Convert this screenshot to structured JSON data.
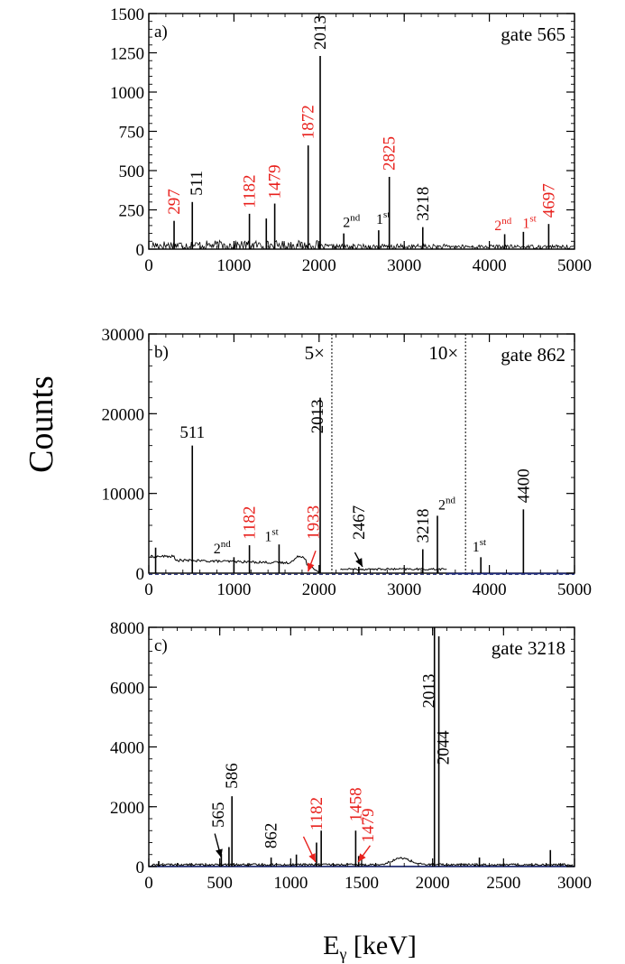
{
  "figure": {
    "ylabel": "Counts",
    "xlabel": "E",
    "xlabel_sub": "γ",
    "xlabel_unit": " [keV]"
  },
  "colors": {
    "black": "#000000",
    "red": "#e8201c",
    "navy": "#1f2a78"
  },
  "chart_data": [
    {
      "type": "line",
      "panel": "a)",
      "gate": "gate 565",
      "xlim": [
        0,
        5000
      ],
      "ylim": [
        0,
        1500
      ],
      "xticks": [
        0,
        1000,
        2000,
        3000,
        4000,
        5000
      ],
      "yticks": [
        0,
        250,
        500,
        750,
        1000,
        1250,
        1500
      ],
      "peaks": [
        {
          "x": 297,
          "y": 180
        },
        {
          "x": 511,
          "y": 300
        },
        {
          "x": 1182,
          "y": 225
        },
        {
          "x": 1380,
          "y": 195
        },
        {
          "x": 1479,
          "y": 290
        },
        {
          "x": 1872,
          "y": 660
        },
        {
          "x": 2013,
          "y": 1230
        },
        {
          "x": 2290,
          "y": 100
        },
        {
          "x": 2700,
          "y": 120
        },
        {
          "x": 2825,
          "y": 460
        },
        {
          "x": 3218,
          "y": 140
        },
        {
          "x": 4180,
          "y": 95
        },
        {
          "x": 4400,
          "y": 110
        },
        {
          "x": 4697,
          "y": 160
        }
      ],
      "labels": [
        {
          "text": "297",
          "x": 297,
          "y": 220,
          "color": "red",
          "vertical": true
        },
        {
          "text": "511",
          "x": 560,
          "y": 340,
          "color": "black",
          "vertical": true
        },
        {
          "text": "1182",
          "x": 1182,
          "y": 260,
          "color": "red",
          "vertical": true
        },
        {
          "text": "1479",
          "x": 1479,
          "y": 320,
          "color": "red",
          "vertical": true
        },
        {
          "text": "1872",
          "x": 1872,
          "y": 700,
          "color": "red",
          "vertical": true
        },
        {
          "text": "2013",
          "x": 2013,
          "y": 1270,
          "color": "black",
          "vertical": true
        },
        {
          "text": "2825",
          "x": 2825,
          "y": 500,
          "color": "red",
          "vertical": true
        },
        {
          "text": "3218",
          "x": 3218,
          "y": 180,
          "color": "black",
          "vertical": true
        },
        {
          "text": "4697",
          "x": 4697,
          "y": 200,
          "color": "red",
          "vertical": true
        }
      ],
      "orders": [
        {
          "base": "2",
          "sup": "nd",
          "x": 2280,
          "y": 140,
          "color": "black"
        },
        {
          "base": "1",
          "sup": "st",
          "x": 2670,
          "y": 160,
          "color": "black"
        },
        {
          "base": "2",
          "sup": "nd",
          "x": 4060,
          "y": 120,
          "color": "red"
        },
        {
          "base": "1",
          "sup": "st",
          "x": 4390,
          "y": 135,
          "color": "red"
        }
      ]
    },
    {
      "type": "line",
      "panel": "b)",
      "gate": "gate 862",
      "xlim": [
        0,
        5000
      ],
      "ylim": [
        0,
        30000
      ],
      "xticks": [
        0,
        1000,
        2000,
        3000,
        4000,
        5000
      ],
      "yticks": [
        0,
        10000,
        20000,
        30000
      ],
      "scale_markers": [
        {
          "x": 2150,
          "text": "5×"
        },
        {
          "x": 3720,
          "text": "10×"
        }
      ],
      "peaks": [
        {
          "x": 80,
          "y": 3200
        },
        {
          "x": 511,
          "y": 16000
        },
        {
          "x": 1000,
          "y": 2000
        },
        {
          "x": 1182,
          "y": 3500
        },
        {
          "x": 1530,
          "y": 3600
        },
        {
          "x": 2013,
          "y": 22000
        },
        {
          "x": 2467,
          "y": 800
        },
        {
          "x": 3218,
          "y": 3000
        },
        {
          "x": 3390,
          "y": 7200
        },
        {
          "x": 3900,
          "y": 2000
        },
        {
          "x": 4400,
          "y": 8000
        }
      ],
      "labels": [
        {
          "text": "511",
          "x": 511,
          "y": 17000,
          "color": "black",
          "vertical": false
        },
        {
          "text": "1182",
          "x": 1182,
          "y": 4200,
          "color": "red",
          "vertical": true
        },
        {
          "text": "1933",
          "x": 1933,
          "y": 4200,
          "color": "red",
          "vertical": true
        },
        {
          "text": "2013",
          "x": 1980,
          "y": 17500,
          "color": "black",
          "vertical": true
        },
        {
          "text": "2467",
          "x": 2467,
          "y": 4200,
          "color": "black",
          "vertical": true
        },
        {
          "text": "3218",
          "x": 3218,
          "y": 3800,
          "color": "black",
          "vertical": true
        },
        {
          "text": "4400",
          "x": 4400,
          "y": 8800,
          "color": "black",
          "vertical": true
        }
      ],
      "orders": [
        {
          "base": "2",
          "sup": "nd",
          "x": 760,
          "y": 2500,
          "color": "black"
        },
        {
          "base": "1",
          "sup": "st",
          "x": 1360,
          "y": 4000,
          "color": "black"
        },
        {
          "base": "2",
          "sup": "nd",
          "x": 3400,
          "y": 8000,
          "color": "black"
        },
        {
          "base": "1",
          "sup": "st",
          "x": 3800,
          "y": 2700,
          "color": "black"
        }
      ],
      "arrows": [
        {
          "from": [
            1960,
            2800
          ],
          "to": [
            1870,
            200
          ],
          "color": "red"
        },
        {
          "from": [
            2420,
            2600
          ],
          "to": [
            2510,
            800
          ],
          "color": "black"
        }
      ]
    },
    {
      "type": "line",
      "panel": "c)",
      "gate": "gate 3218",
      "xlim": [
        0,
        3000
      ],
      "ylim": [
        0,
        8000
      ],
      "xticks": [
        0,
        500,
        1000,
        1500,
        2000,
        2500,
        3000
      ],
      "yticks": [
        0,
        2000,
        4000,
        6000,
        8000
      ],
      "peaks": [
        {
          "x": 70,
          "y": 180
        },
        {
          "x": 511,
          "y": 420
        },
        {
          "x": 565,
          "y": 650
        },
        {
          "x": 586,
          "y": 2350
        },
        {
          "x": 862,
          "y": 300
        },
        {
          "x": 1040,
          "y": 400
        },
        {
          "x": 1182,
          "y": 800
        },
        {
          "x": 1215,
          "y": 1200
        },
        {
          "x": 1458,
          "y": 1200
        },
        {
          "x": 1479,
          "y": 350
        },
        {
          "x": 2013,
          "y": 8000
        },
        {
          "x": 2044,
          "y": 7700
        },
        {
          "x": 2330,
          "y": 300
        },
        {
          "x": 2830,
          "y": 550
        }
      ],
      "labels": [
        {
          "text": "565",
          "x": 490,
          "y": 1300,
          "color": "black",
          "vertical": true
        },
        {
          "text": "586",
          "x": 586,
          "y": 2600,
          "color": "black",
          "vertical": true
        },
        {
          "text": "862",
          "x": 862,
          "y": 600,
          "color": "black",
          "vertical": true
        },
        {
          "text": "1182",
          "x": 1182,
          "y": 1200,
          "color": "red",
          "vertical": true
        },
        {
          "text": "1458",
          "x": 1458,
          "y": 1500,
          "color": "red",
          "vertical": true
        },
        {
          "text": "1479",
          "x": 1545,
          "y": 800,
          "color": "red",
          "vertical": true
        },
        {
          "text": "2013",
          "x": 1975,
          "y": 5300,
          "color": "black",
          "vertical": true
        },
        {
          "text": "2044",
          "x": 2075,
          "y": 3400,
          "color": "black",
          "vertical": true
        }
      ],
      "orders": [],
      "arrows": [
        {
          "from": [
            465,
            1100
          ],
          "to": [
            510,
            300
          ],
          "color": "black"
        },
        {
          "from": [
            1090,
            1000
          ],
          "to": [
            1175,
            150
          ],
          "color": "red"
        },
        {
          "from": [
            1560,
            700
          ],
          "to": [
            1475,
            150
          ],
          "color": "red"
        }
      ]
    }
  ]
}
